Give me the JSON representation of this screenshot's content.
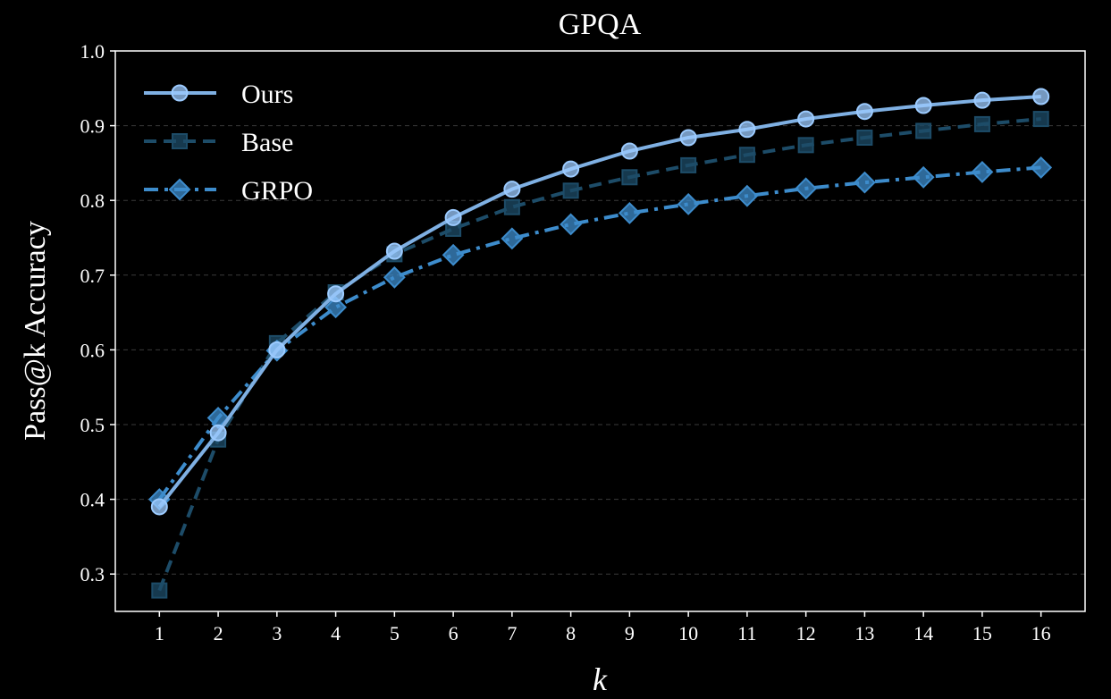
{
  "chart_data": {
    "type": "line",
    "title": "GPQA",
    "xlabel": "k",
    "ylabel": "Pass@k Accuracy",
    "x": [
      1,
      2,
      3,
      4,
      5,
      6,
      7,
      8,
      9,
      10,
      11,
      12,
      13,
      14,
      15,
      16
    ],
    "xlim": [
      0.25,
      16.75
    ],
    "ylim": [
      0.25,
      1.0
    ],
    "yticks": [
      "0.3",
      "0.4",
      "0.5",
      "0.6",
      "0.7",
      "0.8",
      "0.9",
      "1.0"
    ],
    "xticks": [
      "1",
      "2",
      "3",
      "4",
      "5",
      "6",
      "7",
      "8",
      "9",
      "10",
      "11",
      "12",
      "13",
      "14",
      "15",
      "16"
    ],
    "grid": "horizontal dashed",
    "legend_position": "top-left",
    "series": [
      {
        "name": "Ours",
        "color": "#7fb0e3",
        "marker": "circle",
        "linestyle": "solid",
        "values": [
          0.39,
          0.489,
          0.6,
          0.675,
          0.732,
          0.777,
          0.815,
          0.842,
          0.866,
          0.884,
          0.895,
          0.909,
          0.919,
          0.927,
          0.934,
          0.939
        ]
      },
      {
        "name": "Base",
        "color": "#1d4c68",
        "marker": "square",
        "linestyle": "dashed",
        "values": [
          0.278,
          0.48,
          0.609,
          0.677,
          0.728,
          0.762,
          0.791,
          0.813,
          0.831,
          0.847,
          0.861,
          0.874,
          0.884,
          0.893,
          0.902,
          0.909
        ]
      },
      {
        "name": "GRPO",
        "color": "#3d8ccc",
        "marker": "diamond",
        "linestyle": "dashdot",
        "values": [
          0.4,
          0.509,
          0.599,
          0.657,
          0.697,
          0.727,
          0.749,
          0.768,
          0.783,
          0.795,
          0.806,
          0.816,
          0.824,
          0.831,
          0.838,
          0.844
        ]
      }
    ]
  }
}
